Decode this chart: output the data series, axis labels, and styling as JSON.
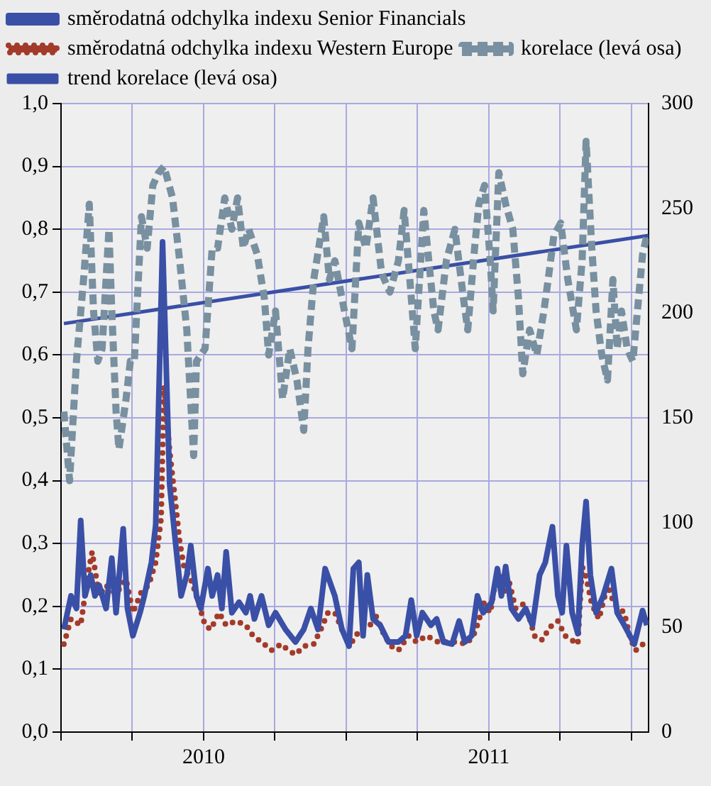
{
  "chart_data": {
    "type": "line",
    "legend": "top",
    "grid": true,
    "xlim": [
      2010.0,
      2012.06
    ],
    "xticks": [
      {
        "value": 2010.0,
        "label": null
      },
      {
        "value": 2010.25,
        "label": null
      },
      {
        "value": 2010.5,
        "label": "2010"
      },
      {
        "value": 2010.75,
        "label": null
      },
      {
        "value": 2011.0,
        "label": null
      },
      {
        "value": 2011.25,
        "label": null
      },
      {
        "value": 2011.5,
        "label": "2011"
      },
      {
        "value": 2011.75,
        "label": null
      },
      {
        "value": 2012.0,
        "label": null
      }
    ],
    "ylim": [
      0,
      1
    ],
    "yticks": [
      {
        "value": 0,
        "label": "0,0"
      },
      {
        "value": 0.1,
        "label": "0,1"
      },
      {
        "value": 0.2,
        "label": "0,2"
      },
      {
        "value": 0.3,
        "label": "0,3"
      },
      {
        "value": 0.4,
        "label": "0,4"
      },
      {
        "value": 0.5,
        "label": "0,5"
      },
      {
        "value": 0.6,
        "label": "0,6"
      },
      {
        "value": 0.7,
        "label": "0,7"
      },
      {
        "value": 0.8,
        "label": "0,8"
      },
      {
        "value": 0.9,
        "label": "0,9"
      },
      {
        "value": 1,
        "label": "1,0"
      }
    ],
    "y2lim": [
      0,
      300
    ],
    "y2ticks": [
      0,
      50,
      100,
      150,
      200,
      250,
      300
    ],
    "series": [
      {
        "name": "směrodatná odchylka indexu Senior Financials",
        "color": "#3a4fa6",
        "axis": "y2",
        "line_style": "solid",
        "x": [
          2010.01,
          2010.035,
          2010.054,
          2010.069,
          2010.084,
          2010.104,
          2010.119,
          2010.134,
          2010.158,
          2010.178,
          2010.193,
          2010.218,
          2010.233,
          2010.252,
          2010.277,
          2010.292,
          2010.317,
          2010.332,
          2010.356,
          2010.381,
          2010.401,
          2010.421,
          2010.441,
          2010.455,
          2010.475,
          2010.49,
          2010.515,
          2010.53,
          2010.549,
          2010.564,
          2010.579,
          2010.599,
          2010.624,
          2010.648,
          2010.663,
          2010.678,
          2010.703,
          2010.728,
          2010.752,
          2010.787,
          2010.822,
          2010.851,
          2010.876,
          2010.901,
          2010.926,
          2010.96,
          2010.985,
          2011.01,
          2011.025,
          2011.044,
          2011.059,
          2011.074,
          2011.094,
          2011.119,
          2011.148,
          2011.183,
          2011.208,
          2011.228,
          2011.247,
          2011.267,
          2011.297,
          2011.317,
          2011.341,
          2011.371,
          2011.396,
          2011.416,
          2011.44,
          2011.46,
          2011.48,
          2011.51,
          2011.53,
          2011.544,
          2011.559,
          2011.579,
          2011.604,
          2011.629,
          2011.653,
          2011.678,
          2011.698,
          2011.723,
          2011.742,
          2011.757,
          2011.772,
          2011.792,
          2011.812,
          2011.827,
          2011.841,
          2011.856,
          2011.876,
          2011.901,
          2011.93,
          2011.95,
          2011.975,
          2012.01,
          2012.039,
          2012.054
        ],
        "values": [
          49,
          65,
          59,
          101,
          65,
          75,
          65,
          70,
          59,
          83,
          57,
          97,
          59,
          46,
          57,
          65,
          81,
          99,
          234,
          118,
          91,
          65,
          75,
          89,
          65,
          59,
          78,
          65,
          75,
          59,
          86,
          57,
          62,
          57,
          65,
          54,
          65,
          51,
          57,
          49,
          43,
          49,
          59,
          49,
          78,
          65,
          49,
          41,
          78,
          81,
          46,
          75,
          54,
          51,
          43,
          43,
          46,
          63,
          46,
          57,
          51,
          54,
          43,
          42,
          53,
          43,
          46,
          65,
          57,
          62,
          78,
          65,
          79,
          59,
          54,
          59,
          51,
          75,
          81,
          98,
          65,
          57,
          89,
          57,
          47,
          89,
          110,
          75,
          57,
          65,
          78,
          57,
          51,
          42,
          58,
          51
        ]
      },
      {
        "name": "směrodatná odchylka indexu Western Europe",
        "color": "#a33b2a",
        "axis": "y2",
        "line_style": "dotted",
        "x": [
          2010.01,
          2010.035,
          2010.069,
          2010.094,
          2010.109,
          2010.134,
          2010.158,
          2010.193,
          2010.228,
          2010.252,
          2010.282,
          2010.307,
          2010.332,
          2010.351,
          2010.361,
          2010.381,
          2010.401,
          2010.416,
          2010.431,
          2010.455,
          2010.475,
          2010.505,
          2010.525,
          2010.554,
          2010.579,
          2010.614,
          2010.648,
          2010.673,
          2010.703,
          2010.738,
          2010.772,
          2010.797,
          2010.822,
          2010.851,
          2010.886,
          2010.911,
          2010.936,
          2010.96,
          2010.985,
          2011.005,
          2011.02,
          2011.049,
          2011.084,
          2011.099,
          2011.134,
          2011.158,
          2011.183,
          2011.218,
          2011.247,
          2011.282,
          2011.322,
          2011.356,
          2011.391,
          2011.421,
          2011.446,
          2011.465,
          2011.48,
          2011.505,
          2011.53,
          2011.554,
          2011.569,
          2011.594,
          2011.619,
          2011.643,
          2011.663,
          2011.688,
          2011.713,
          2011.742,
          2011.767,
          2011.812,
          2011.827,
          2011.841,
          2011.861,
          2011.886,
          2011.916,
          2011.94,
          2011.975,
          2011.995,
          2012.015,
          2012.049
        ],
        "values": [
          42,
          54,
          51,
          75,
          86,
          65,
          70,
          66,
          73,
          57,
          67,
          70,
          81,
          102,
          165,
          134,
          110,
          91,
          79,
          73,
          65,
          51,
          49,
          57,
          51,
          53,
          51,
          46,
          43,
          39,
          42,
          39,
          37,
          41,
          42,
          49,
          57,
          57,
          49,
          45,
          43,
          49,
          51,
          57,
          46,
          41,
          39,
          46,
          43,
          46,
          43,
          43,
          43,
          42,
          46,
          53,
          62,
          57,
          77,
          67,
          73,
          59,
          61,
          54,
          45,
          44,
          50,
          53,
          46,
          42,
          79,
          74,
          61,
          54,
          70,
          61,
          57,
          45,
          39,
          43
        ]
      },
      {
        "name": "korelace (levá osa)",
        "color": "#7890a0",
        "line_style": "dashed",
        "x": [
          2010.01,
          2010.03,
          2010.054,
          2010.079,
          2010.099,
          2010.114,
          2010.129,
          2010.144,
          2010.168,
          2010.178,
          2010.193,
          2010.203,
          2010.228,
          2010.243,
          2010.257,
          2010.282,
          2010.302,
          2010.322,
          2010.342,
          2010.361,
          2010.391,
          2010.416,
          2010.441,
          2010.465,
          2010.475,
          2010.505,
          2010.53,
          2010.549,
          2010.574,
          2010.599,
          2010.619,
          2010.639,
          2010.658,
          2010.688,
          2010.713,
          2010.728,
          2010.752,
          2010.777,
          2010.802,
          2010.827,
          2010.851,
          2010.866,
          2010.886,
          2010.921,
          2010.941,
          2010.96,
          2010.985,
          2011.02,
          2011.044,
          2011.069,
          2011.094,
          2011.124,
          2011.153,
          2011.183,
          2011.203,
          2011.223,
          2011.242,
          2011.272,
          2011.307,
          2011.322,
          2011.351,
          2011.381,
          2011.411,
          2011.426,
          2011.45,
          2011.465,
          2011.485,
          2011.505,
          2011.515,
          2011.535,
          2011.559,
          2011.584,
          2011.604,
          2011.619,
          2011.643,
          2011.668,
          2011.693,
          2011.708,
          2011.728,
          2011.752,
          2011.777,
          2011.807,
          2011.827,
          2011.841,
          2011.861,
          2011.876,
          2011.896,
          2011.916,
          2011.935,
          2011.95,
          2011.965,
          2011.985,
          2012.005,
          2012.025,
          2012.039,
          2012.054
        ],
        "values": [
          0.51,
          0.4,
          0.59,
          0.72,
          0.84,
          0.67,
          0.59,
          0.61,
          0.8,
          0.67,
          0.51,
          0.45,
          0.53,
          0.59,
          0.59,
          0.82,
          0.77,
          0.87,
          0.89,
          0.9,
          0.85,
          0.75,
          0.64,
          0.44,
          0.59,
          0.61,
          0.77,
          0.77,
          0.85,
          0.8,
          0.85,
          0.77,
          0.8,
          0.76,
          0.69,
          0.6,
          0.67,
          0.53,
          0.61,
          0.56,
          0.48,
          0.61,
          0.72,
          0.82,
          0.72,
          0.75,
          0.69,
          0.61,
          0.81,
          0.77,
          0.85,
          0.73,
          0.7,
          0.75,
          0.83,
          0.72,
          0.61,
          0.83,
          0.67,
          0.64,
          0.75,
          0.8,
          0.69,
          0.64,
          0.77,
          0.84,
          0.87,
          0.75,
          0.67,
          0.89,
          0.84,
          0.8,
          0.69,
          0.57,
          0.64,
          0.6,
          0.67,
          0.72,
          0.79,
          0.81,
          0.72,
          0.64,
          0.75,
          0.94,
          0.77,
          0.67,
          0.6,
          0.56,
          0.72,
          0.61,
          0.67,
          0.61,
          0.59,
          0.69,
          0.76,
          0.79
        ]
      },
      {
        "name": "trend korelace (levá osa)",
        "color": "#3a4fa6",
        "line_style": "solid",
        "x": [
          2010.01,
          2012.06
        ],
        "values": [
          0.65,
          0.79
        ]
      }
    ]
  }
}
